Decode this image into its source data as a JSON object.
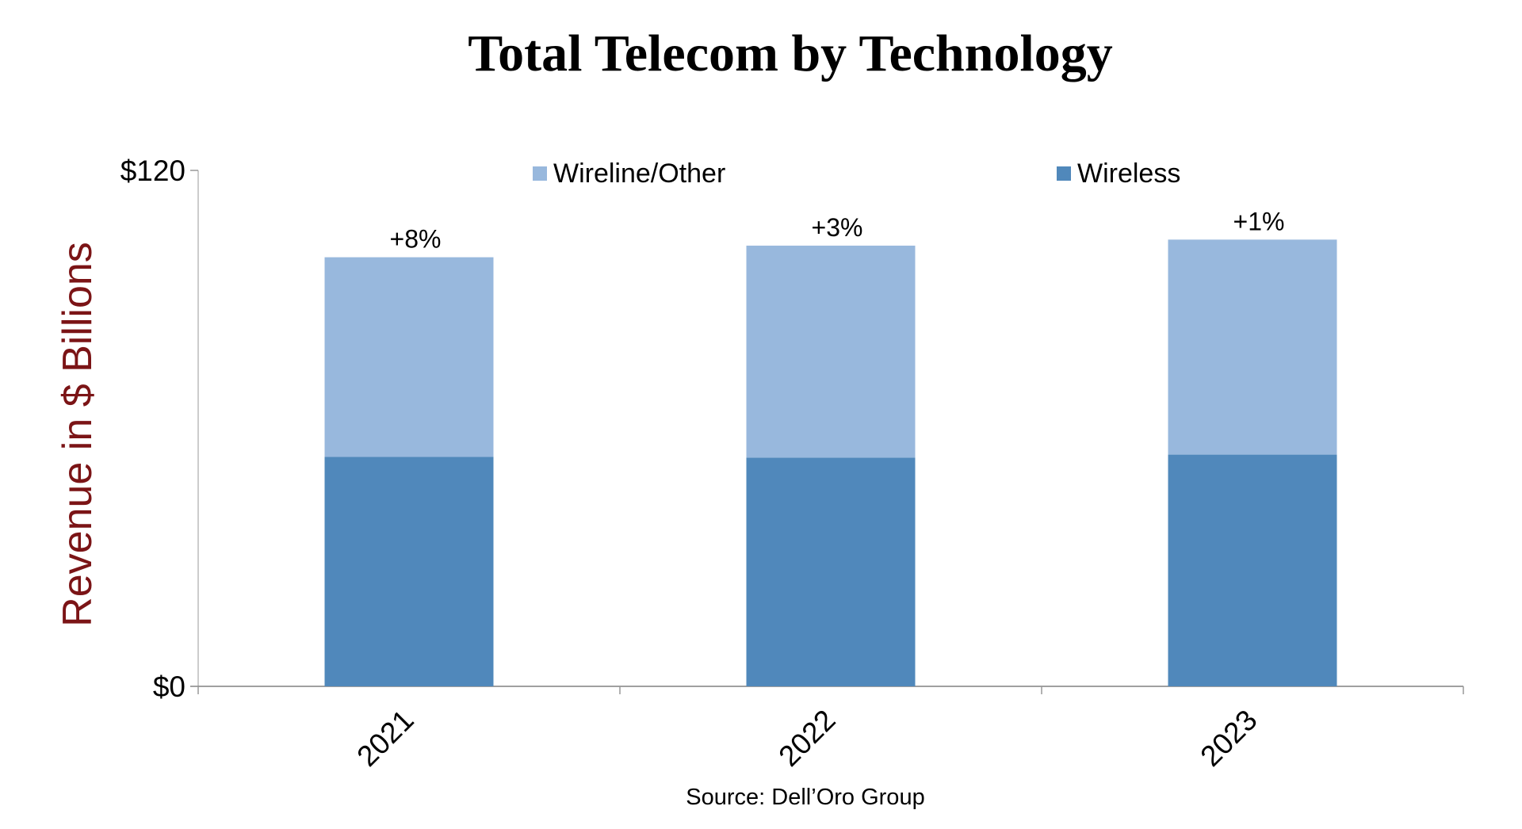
{
  "chart_data": {
    "type": "bar",
    "stacked": true,
    "title": "Total Telecom by Technology",
    "ylabel": "Revenue in $ Billions",
    "xlabel": "",
    "source": "Source: Dell’Oro Group",
    "categories": [
      "2021",
      "2022",
      "2023"
    ],
    "series": [
      {
        "name": "Wireless",
        "color": "#5088bb",
        "values": [
          53.4,
          53.2,
          53.9
        ]
      },
      {
        "name": "Wireline/Other",
        "color": "#98b8dd",
        "values": [
          46.4,
          49.3,
          50.0
        ]
      }
    ],
    "data_labels": [
      "+8%",
      "+3%",
      "+1%"
    ],
    "ylim": [
      0,
      120
    ],
    "yticks": [
      0,
      120
    ],
    "ytick_labels": [
      "$0",
      "$120"
    ],
    "legend": {
      "placement": "top",
      "order": [
        "Wireline/Other",
        "Wireless"
      ]
    },
    "grid": false
  }
}
